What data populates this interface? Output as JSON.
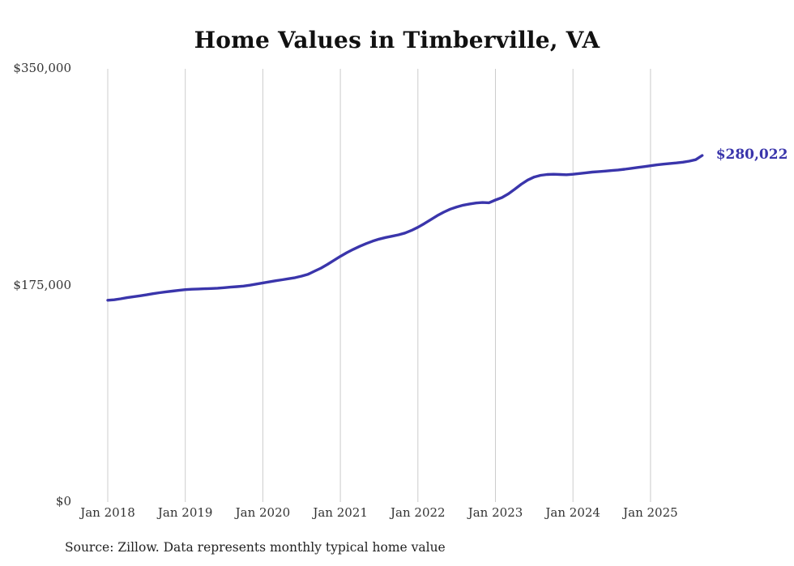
{
  "title": "Home Values in Timberville, VA",
  "source_note": "Source: Zillow. Data represents monthly typical home value",
  "colors": {
    "line": "#3a35ab",
    "grid": "#cccccc",
    "axis_text": "#333333",
    "title_text": "#111111"
  },
  "chart_data": {
    "type": "line",
    "title": "Home Values in Timberville, VA",
    "x_tick_labels": [
      "Jan 2018",
      "Jan 2019",
      "Jan 2020",
      "Jan 2021",
      "Jan 2022",
      "Jan 2023",
      "Jan 2024",
      "Jan 2025"
    ],
    "y_tick_labels": [
      "$0",
      "$175,000",
      "$350,000"
    ],
    "y_ticks": [
      0,
      175000,
      350000
    ],
    "ylim": [
      0,
      350000
    ],
    "grid": "vertical-only",
    "legend": "none",
    "x_start_month": "2018-01",
    "x_frequency": "monthly",
    "final_value": 280022,
    "final_value_label": "$280,022",
    "series": [
      {
        "name": "Typical home value",
        "values": [
          163000,
          163400,
          164200,
          165100,
          165900,
          166600,
          167400,
          168300,
          169100,
          169800,
          170400,
          171000,
          171600,
          171900,
          172100,
          172300,
          172500,
          172800,
          173200,
          173600,
          174000,
          174500,
          175200,
          176100,
          177000,
          177900,
          178800,
          179600,
          180400,
          181300,
          182500,
          184000,
          186500,
          189000,
          192000,
          195200,
          198500,
          201500,
          204200,
          206600,
          208800,
          210800,
          212400,
          213700,
          214800,
          215900,
          217300,
          219400,
          222000,
          225000,
          228200,
          231400,
          234200,
          236600,
          238400,
          239800,
          240800,
          241600,
          242000,
          241800,
          244000,
          246000,
          249000,
          252800,
          256800,
          260200,
          262600,
          264000,
          264600,
          264800,
          264600,
          264400,
          264800,
          265400,
          266000,
          266600,
          267000,
          267400,
          267800,
          268300,
          268900,
          269600,
          270300,
          271000,
          271700,
          272400,
          273000,
          273500,
          274000,
          274600,
          275400,
          276600,
          280022
        ]
      }
    ]
  }
}
